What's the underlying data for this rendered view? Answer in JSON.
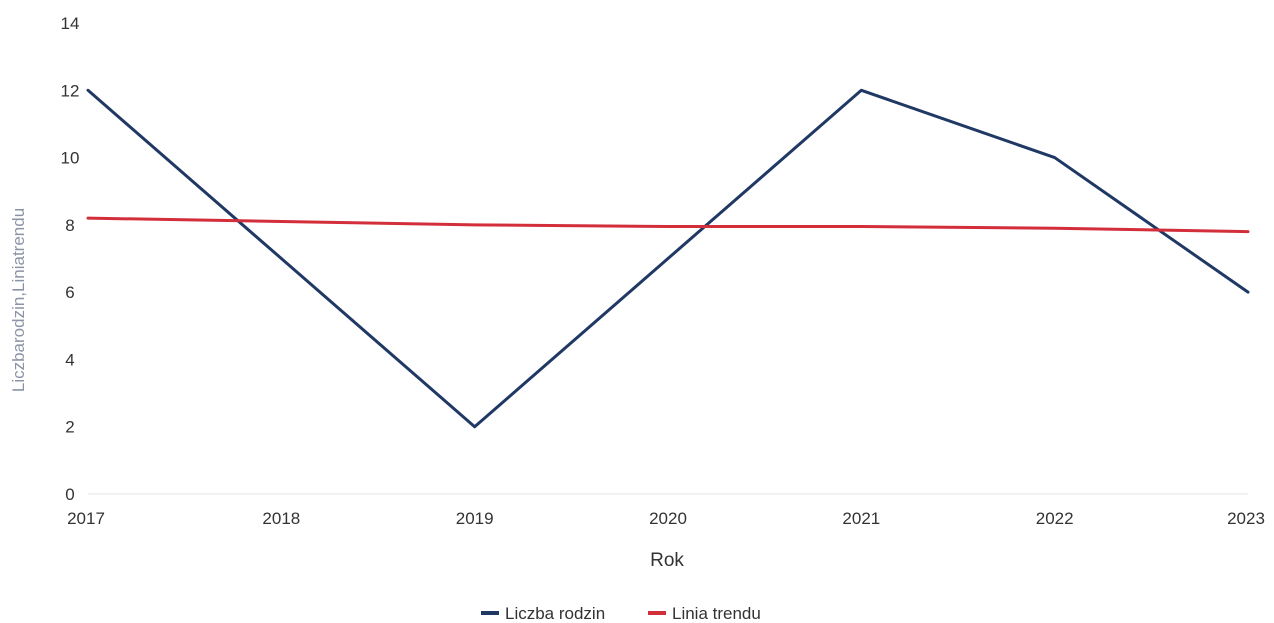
{
  "chart_data": {
    "type": "line",
    "x": [
      "2017",
      "2018",
      "2019",
      "2020",
      "2021",
      "2022",
      "2023"
    ],
    "series": [
      {
        "name": "Liczba rodzin",
        "values": [
          12,
          7,
          2,
          7,
          12,
          10,
          6
        ],
        "color": "#1f3864"
      },
      {
        "name": "Linia trendu",
        "values": [
          8.2,
          8.1,
          8.0,
          7.95,
          7.95,
          7.9,
          7.8
        ],
        "color": "#d32f3a"
      }
    ],
    "xlabel": "Rok",
    "ylabel": "Liczbarodzin,Liniatrendu",
    "ylim": [
      0,
      14
    ],
    "yticks": [
      "0",
      "2",
      "4",
      "6",
      "8",
      "10",
      "12",
      "14"
    ],
    "grid": false,
    "legend_position": "bottom-center"
  }
}
